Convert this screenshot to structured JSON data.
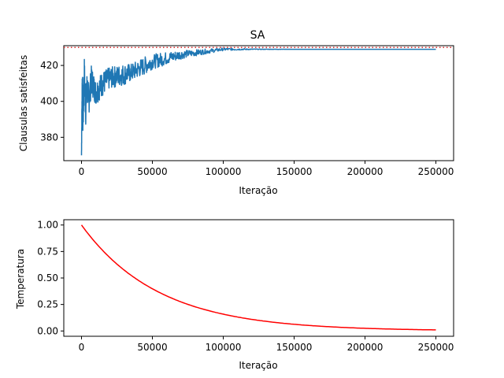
{
  "chart_data": [
    {
      "type": "line",
      "title": "SA",
      "xlabel": "Iteração",
      "ylabel": "Clausulas satisfeitas",
      "xlim": [
        -12500,
        262500
      ],
      "ylim": [
        367,
        431
      ],
      "xticks": [
        0,
        50000,
        100000,
        150000,
        200000,
        250000
      ],
      "xtick_labels": [
        "0",
        "50000",
        "100000",
        "150000",
        "200000",
        "250000"
      ],
      "yticks": [
        380,
        400,
        420
      ],
      "ytick_labels": [
        "380",
        "400",
        "420"
      ],
      "grid": false,
      "series": [
        {
          "color": "#1f77b4",
          "x": [
            0,
            500,
            1000,
            2000,
            3000,
            4000,
            5000,
            7000,
            10000,
            15000,
            20000,
            25000,
            30000,
            35000,
            40000,
            45000,
            50000,
            55000,
            60000,
            65000,
            70000,
            75000,
            80000,
            85000,
            90000,
            95000,
            100000,
            110000,
            120000,
            150000,
            200000,
            250000
          ],
          "y": [
            370,
            412,
            390,
            414,
            396,
            410,
            400,
            412,
            405,
            410,
            413,
            414,
            415,
            416,
            418,
            420,
            422,
            423,
            424,
            425,
            426,
            426.5,
            427,
            427.5,
            428,
            428.5,
            429,
            429,
            429,
            429,
            429,
            429
          ],
          "noise_amplitude": [
            0,
            12,
            12,
            11,
            10,
            9,
            9,
            8,
            7,
            7,
            6,
            6,
            6,
            5,
            5,
            5,
            4,
            4,
            3.5,
            3,
            2.5,
            2,
            1.8,
            1.5,
            1.2,
            1,
            0.8,
            0.5,
            0.2,
            0,
            0,
            0
          ]
        }
      ],
      "reference_line": {
        "y": 430,
        "color": "#d62728",
        "style": "dotted"
      }
    },
    {
      "type": "line",
      "title": "",
      "xlabel": "Iteração",
      "ylabel": "Temperatura",
      "xlim": [
        -12500,
        262500
      ],
      "ylim": [
        -0.05,
        1.05
      ],
      "xticks": [
        0,
        50000,
        100000,
        150000,
        200000,
        250000
      ],
      "xtick_labels": [
        "0",
        "50000",
        "100000",
        "150000",
        "200000",
        "250000"
      ],
      "yticks": [
        0,
        0.25,
        0.5,
        0.75,
        1.0
      ],
      "ytick_labels": [
        "0.00",
        "0.25",
        "0.50",
        "0.75",
        "1.00"
      ],
      "grid": false,
      "series": [
        {
          "color": "#ff0000",
          "function": "exp_decay",
          "x_start": 0,
          "x_end": 250000,
          "y_start": 1.0,
          "y_end": 0.01
        }
      ]
    }
  ]
}
